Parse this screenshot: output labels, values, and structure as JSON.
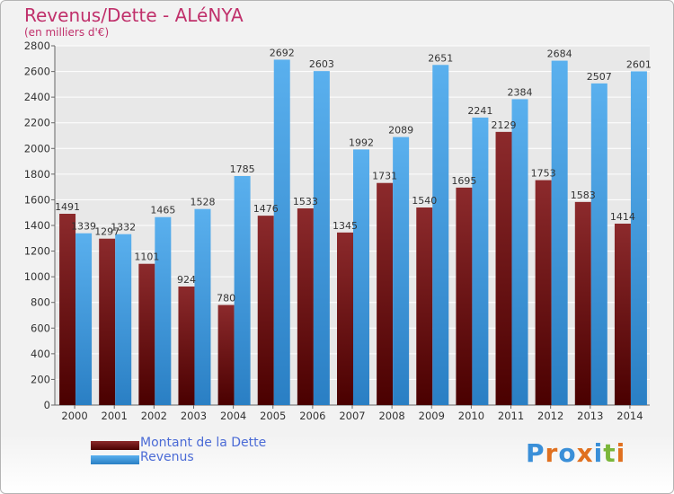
{
  "title": "Revenus/Dette - ALéNYA",
  "subtitle": "(en milliers d'€)",
  "logo_text": "Proxiti",
  "chart_data": {
    "type": "bar",
    "title": "Revenus/Dette - ALéNYA",
    "ylabel": "(en milliers d'€)",
    "xlabel": "",
    "ylim": [
      0,
      2800
    ],
    "ytick_step": 200,
    "grid": true,
    "legend_position": "bottom-left",
    "categories": [
      "2000",
      "2001",
      "2002",
      "2003",
      "2004",
      "2005",
      "2006",
      "2007",
      "2008",
      "2009",
      "2010",
      "2011",
      "2012",
      "2013",
      "2014"
    ],
    "series": [
      {
        "name": "Montant de la Dette",
        "color": "#7b1416",
        "values": [
          1491,
          1297,
          1101,
          924,
          780,
          1476,
          1533,
          1345,
          1731,
          1540,
          1695,
          2129,
          1753,
          1583,
          1414
        ]
      },
      {
        "name": "Revenus",
        "color": "#3a98dd",
        "values": [
          1339,
          1332,
          1465,
          1528,
          1785,
          2692,
          2603,
          1992,
          2089,
          2651,
          2241,
          2384,
          2684,
          2507,
          2601
        ]
      }
    ]
  },
  "colors": {
    "title": "#c0306b",
    "legend_text": "#4b6bd6",
    "debt_light": "#8c2a2c",
    "debt_dark": "#4a0000",
    "revenue_light": "#5ab0ee",
    "revenue_dark": "#2a7fc4"
  }
}
